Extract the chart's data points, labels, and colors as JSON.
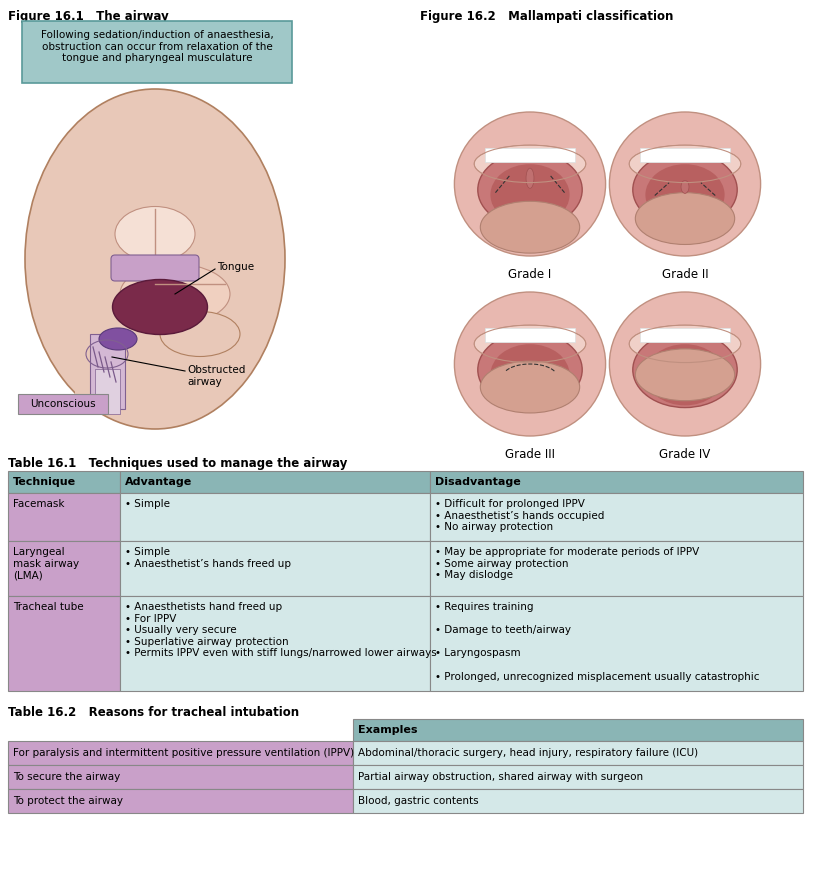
{
  "title1": "Figure 16.1   The airway",
  "title2": "Figure 16.2   Mallampati classification",
  "info_box_text": "Following sedation/induction of anaesthesia,\nobstruction can occur from relaxation of the\ntongue and pharyngeal musculature",
  "table1_title": "Table 16.1   Techniques used to manage the airway",
  "table1_headers": [
    "Technique",
    "Advantage",
    "Disadvantage"
  ],
  "table1_rows": [
    [
      "Facemask",
      "• Simple",
      "• Difficult for prolonged IPPV\n• Anaesthetist’s hands occupied\n• No airway protection"
    ],
    [
      "Laryngeal\nmask airway\n(LMA)",
      "• Simple\n• Anaesthetist’s hands freed up",
      "• May be appropriate for moderate periods of IPPV\n• Some airway protection\n• May dislodge"
    ],
    [
      "Tracheal tube",
      "• Anaesthetists hand freed up\n• For IPPV\n• Usually very secure\n• Superlative airway protection\n• Permits IPPV even with stiff lungs/narrowed lower airways",
      "• Requires training\n\n• Damage to teeth/airway\n\n• Laryngospasm\n\n• Prolonged, unrecognized misplacement usually catastrophic"
    ]
  ],
  "table2_title": "Table 16.2   Reasons for tracheal intubation",
  "table2_headers": [
    "",
    "Examples"
  ],
  "table2_rows": [
    [
      "For paralysis and intermittent positive pressure ventilation (IPPV)",
      "Abdominal/thoracic surgery, head injury, respiratory failure (ICU)"
    ],
    [
      "To secure the airway",
      "Partial airway obstruction, shared airway with surgeon"
    ],
    [
      "To protect the airway",
      "Blood, gastric contents"
    ]
  ],
  "color_header": "#8ab5b5",
  "color_col1_bg": "#c9a0c9",
  "color_cell_bg": "#d4e8e8",
  "color_info_box": "#a0c8c8",
  "color_unconscious_box": "#c9a0c9",
  "color_border": "#888888",
  "grade_labels": [
    "Grade I",
    "Grade II",
    "Grade III",
    "Grade IV"
  ],
  "tongue_label": "Tongue",
  "obstructed_label": "Obstructed\nairway",
  "unconscious_label": "Unconscious",
  "bg_color": "#ffffff"
}
